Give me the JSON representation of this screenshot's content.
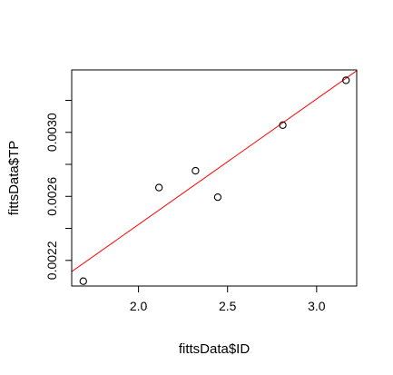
{
  "chart_data": {
    "type": "scatter",
    "title": "",
    "xlabel": "fittsData$ID",
    "ylabel": "fittsData$TP",
    "xlim": [
      1.625,
      3.225
    ],
    "ylim": [
      0.00204,
      0.00339
    ],
    "x_ticks": [
      2.0,
      2.5,
      3.0
    ],
    "x_tick_labels": [
      "2.0",
      "2.5",
      "3.0"
    ],
    "y_ticks": [
      0.0022,
      0.0024,
      0.0026,
      0.0028,
      0.003,
      0.0032
    ],
    "y_tick_labels": [
      "0.0022",
      "",
      "0.0026",
      "",
      "0.0030",
      ""
    ],
    "grid": false,
    "legend": "none",
    "points": [
      {
        "x": 1.69,
        "y": 0.00207
      },
      {
        "x": 2.115,
        "y": 0.002655
      },
      {
        "x": 2.32,
        "y": 0.00276
      },
      {
        "x": 2.445,
        "y": 0.002595
      },
      {
        "x": 2.81,
        "y": 0.003045
      },
      {
        "x": 3.165,
        "y": 0.003325
      }
    ],
    "fit_line": {
      "color": "#ff0000",
      "start": {
        "x": 1.625,
        "y": 0.00213
      },
      "end": {
        "x": 3.225,
        "y": 0.003385
      }
    },
    "point_color": "#000000"
  }
}
